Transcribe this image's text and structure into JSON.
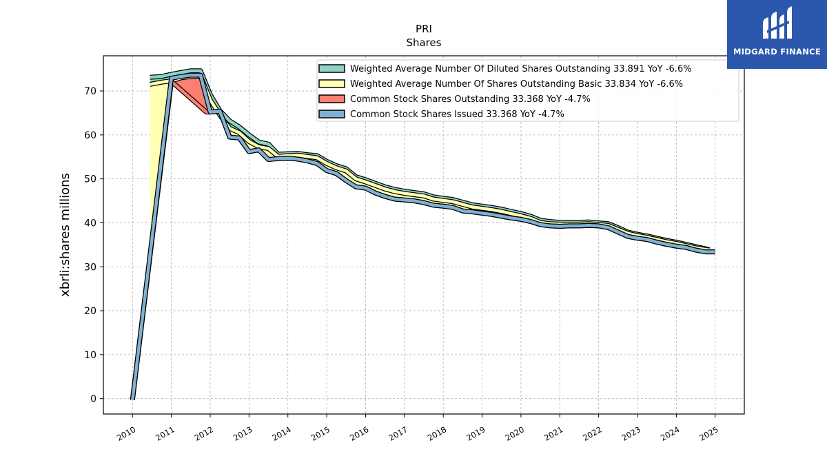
{
  "chart_data": {
    "type": "line",
    "title": "PRI",
    "subtitle": "Shares",
    "xlabel": "",
    "ylabel": "xbrli:shares millions",
    "xlim": [
      2009.25,
      2025.75
    ],
    "ylim": [
      -3.5,
      78
    ],
    "yticks": [
      0,
      10,
      20,
      30,
      40,
      50,
      60,
      70
    ],
    "xticks": [
      "2010",
      "2011",
      "2012",
      "2013",
      "2014",
      "2015",
      "2016",
      "2017",
      "2018",
      "2019",
      "2020",
      "2021",
      "2022",
      "2023",
      "2024",
      "2025"
    ],
    "grid": true,
    "legend_position": "top-right",
    "series": [
      {
        "name": "Weighted Average Number Of Diluted Shares Outstanding",
        "legend_label": "Weighted Average Number Of Diluted Shares Outstanding  33.891 YoY -6.6%",
        "color": "#8dd3c7",
        "x": [
          2010.45,
          2010.75,
          2011.0,
          2011.25,
          2011.5,
          2011.75,
          2012.0,
          2012.25,
          2012.5,
          2012.75,
          2013.0,
          2013.25,
          2013.5,
          2013.75,
          2014.0,
          2014.25,
          2014.5,
          2014.75,
          2015.0,
          2015.25,
          2015.5,
          2015.75,
          2016.0,
          2016.25,
          2016.5,
          2016.75,
          2017.0,
          2017.25,
          2017.5,
          2017.75,
          2018.0,
          2018.25,
          2018.5,
          2018.75,
          2019.0,
          2019.25,
          2019.5,
          2019.75,
          2020.0,
          2020.25,
          2020.5,
          2020.75,
          2021.0,
          2021.25,
          2021.5,
          2021.75,
          2022.0,
          2022.25,
          2022.5,
          2022.75,
          2023.0,
          2023.25,
          2023.5,
          2023.75,
          2024.0,
          2024.25,
          2024.5,
          2024.85
        ],
        "values": [
          73.1,
          73.3,
          73.8,
          74.2,
          74.6,
          74.6,
          69.2,
          65.5,
          63.2,
          61.8,
          60.0,
          58.4,
          57.9,
          55.6,
          55.7,
          55.8,
          55.5,
          55.3,
          54.0,
          53.0,
          52.3,
          50.5,
          49.8,
          49.0,
          48.2,
          47.6,
          47.2,
          46.9,
          46.6,
          45.9,
          45.6,
          45.3,
          44.7,
          44.1,
          43.8,
          43.5,
          43.1,
          42.6,
          42.1,
          41.5,
          40.6,
          40.3,
          40.1,
          40.1,
          40.1,
          40.2,
          40.0,
          39.8,
          38.9,
          37.9,
          37.4,
          37.0,
          36.5,
          36.0,
          35.6,
          35.1,
          34.6,
          33.9
        ]
      },
      {
        "name": "Weighted Average Number Of Shares Outstanding Basic",
        "legend_label": "Weighted Average Number Of Shares Outstanding Basic  33.834 YoY -6.6%",
        "color": "#ffffb3",
        "x": [
          2010.45,
          2010.75,
          2011.0,
          2011.25,
          2011.5,
          2011.75,
          2012.0,
          2012.25,
          2012.5,
          2012.75,
          2013.0,
          2013.25,
          2013.5,
          2013.75,
          2014.0,
          2014.25,
          2014.5,
          2014.75,
          2015.0,
          2015.25,
          2015.5,
          2015.75,
          2016.0,
          2016.25,
          2016.5,
          2016.75,
          2017.0,
          2017.25,
          2017.5,
          2017.75,
          2018.0,
          2018.25,
          2018.5,
          2018.75,
          2019.0,
          2019.25,
          2019.5,
          2019.75,
          2020.0,
          2020.25,
          2020.5,
          2020.75,
          2021.0,
          2021.25,
          2021.5,
          2021.75,
          2022.0,
          2022.25,
          2022.5,
          2022.75,
          2023.0,
          2023.25,
          2023.5,
          2023.75,
          2024.0,
          2024.25,
          2024.5,
          2024.85
        ],
        "values": [
          71.5,
          72.0,
          72.3,
          73.0,
          73.3,
          73.4,
          68.0,
          64.5,
          61.5,
          60.5,
          58.5,
          57.3,
          56.9,
          55.1,
          55.3,
          55.4,
          55.1,
          54.8,
          53.5,
          52.5,
          51.8,
          50.0,
          49.3,
          48.5,
          47.7,
          47.1,
          46.7,
          46.4,
          46.1,
          45.4,
          45.1,
          44.8,
          44.2,
          43.6,
          43.3,
          43.0,
          42.6,
          42.1,
          41.6,
          41.0,
          40.1,
          39.8,
          39.7,
          39.7,
          39.7,
          39.8,
          39.6,
          39.4,
          38.5,
          37.6,
          37.1,
          36.7,
          36.2,
          35.7,
          35.3,
          34.8,
          34.3,
          33.8
        ]
      },
      {
        "name": "Common Stock Shares Outstanding",
        "legend_label": "Common Stock Shares Outstanding  33.368 YoY -4.7%",
        "color": "#fb8072",
        "x": [
          2010.0,
          2011.0,
          2011.9,
          2012.0,
          2012.25,
          2012.5,
          2012.75,
          2013.0,
          2013.25,
          2013.5,
          2013.75,
          2014.0,
          2014.25,
          2014.5,
          2014.75,
          2015.0,
          2015.25,
          2015.5,
          2015.75,
          2016.0,
          2016.25,
          2016.5,
          2016.75,
          2017.0,
          2017.25,
          2017.5,
          2017.75,
          2018.0,
          2018.25,
          2018.5,
          2018.75,
          2019.0,
          2019.25,
          2019.5,
          2019.75,
          2020.0,
          2020.25,
          2020.5,
          2020.75,
          2021.0,
          2021.25,
          2021.5,
          2021.75,
          2022.0,
          2022.25,
          2022.5,
          2022.75,
          2023.0,
          2023.25,
          2023.5,
          2023.75,
          2024.0,
          2024.25,
          2024.5,
          2024.75,
          2025.0
        ],
        "values": [
          -0.3,
          72.2,
          65.2,
          65.2,
          65.4,
          59.5,
          59.3,
          56.2,
          56.6,
          54.4,
          54.6,
          54.7,
          54.5,
          54.1,
          53.5,
          51.9,
          51.2,
          49.6,
          48.2,
          47.9,
          46.8,
          46.0,
          45.4,
          45.2,
          45.0,
          44.6,
          44.0,
          43.8,
          43.5,
          42.7,
          42.5,
          42.2,
          41.9,
          41.5,
          41.1,
          40.8,
          40.3,
          39.6,
          39.3,
          39.2,
          39.3,
          39.3,
          39.4,
          39.3,
          38.9,
          37.9,
          36.9,
          36.5,
          36.2,
          35.6,
          35.1,
          34.7,
          34.4,
          33.8,
          33.4,
          33.4
        ]
      },
      {
        "name": "Common Stock Shares Issued",
        "legend_label": "Common Stock Shares Issued  33.368 YoY -4.7%",
        "color": "#80b1d3",
        "x": [
          2010.0,
          2011.0,
          2011.25,
          2011.5,
          2011.75,
          2012.0,
          2012.25,
          2012.5,
          2012.75,
          2013.0,
          2013.25,
          2013.5,
          2013.75,
          2014.0,
          2014.25,
          2014.5,
          2014.75,
          2015.0,
          2015.25,
          2015.5,
          2015.75,
          2016.0,
          2016.25,
          2016.5,
          2016.75,
          2017.0,
          2017.25,
          2017.5,
          2017.75,
          2018.0,
          2018.25,
          2018.5,
          2018.75,
          2019.0,
          2019.25,
          2019.5,
          2019.75,
          2020.0,
          2020.25,
          2020.5,
          2020.75,
          2021.0,
          2021.25,
          2021.5,
          2021.75,
          2022.0,
          2022.25,
          2022.5,
          2022.75,
          2023.0,
          2023.25,
          2023.5,
          2023.75,
          2024.0,
          2024.25,
          2024.5,
          2024.75,
          2025.0
        ],
        "values": [
          -0.3,
          72.9,
          73.3,
          73.6,
          73.6,
          65.2,
          65.4,
          59.5,
          59.3,
          56.2,
          56.6,
          54.4,
          54.6,
          54.7,
          54.5,
          54.1,
          53.5,
          51.9,
          51.2,
          49.6,
          48.2,
          47.9,
          46.8,
          46.0,
          45.4,
          45.2,
          45.0,
          44.6,
          44.0,
          43.8,
          43.5,
          42.7,
          42.5,
          42.2,
          41.9,
          41.5,
          41.1,
          40.8,
          40.3,
          39.6,
          39.3,
          39.2,
          39.3,
          39.3,
          39.4,
          39.3,
          38.9,
          37.9,
          36.9,
          36.5,
          36.2,
          35.6,
          35.1,
          34.7,
          34.4,
          33.8,
          33.4,
          33.4
        ]
      }
    ]
  },
  "logo": {
    "text": "MIDGARD FINANCE",
    "background": "#2b57ad"
  }
}
